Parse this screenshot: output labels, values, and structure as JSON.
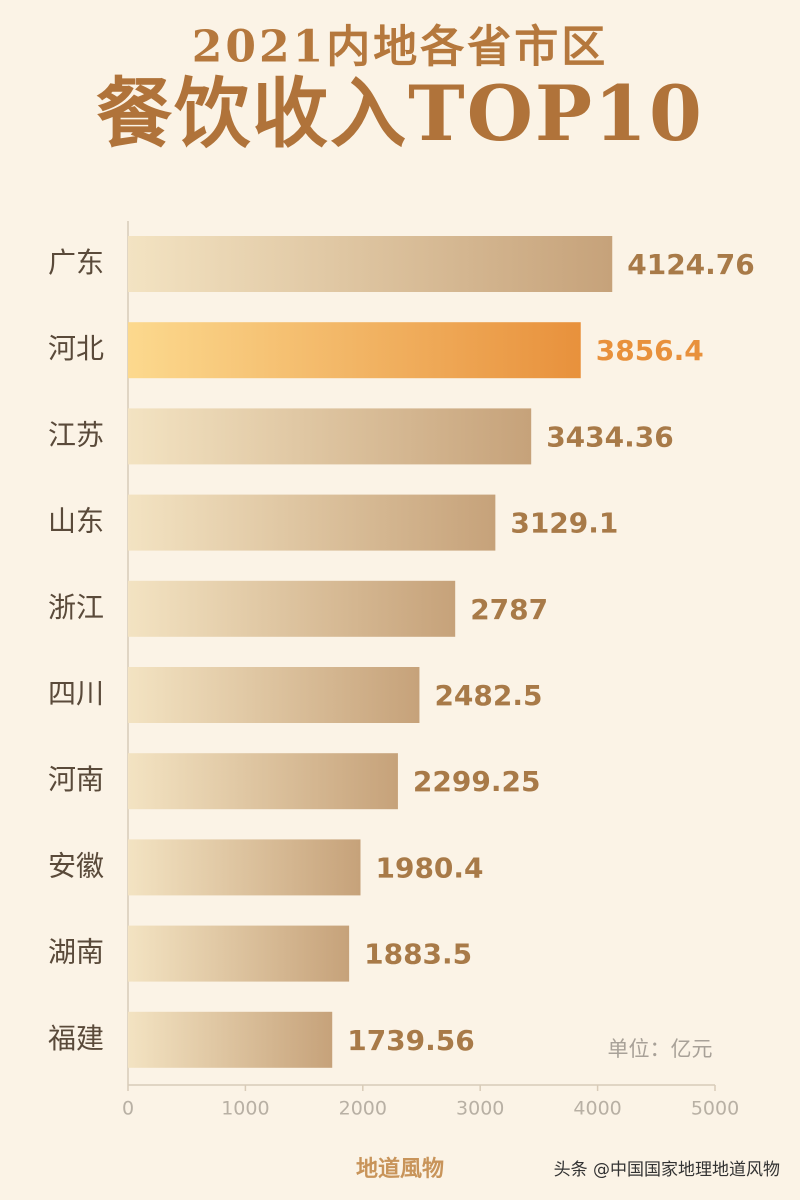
{
  "chart_data": {
    "type": "hbar",
    "title": "2021内地各省市区",
    "subtitle": "餐饮收入TOP10",
    "categories": [
      "广东",
      "河北",
      "江苏",
      "山东",
      "浙江",
      "四川",
      "河南",
      "安徽",
      "湖南",
      "福建"
    ],
    "values": [
      4124.76,
      3856.4,
      3434.36,
      3129.1,
      2787,
      2482.5,
      2299.25,
      1980.4,
      1883.5,
      1739.56
    ],
    "colors": [
      [
        "#f3e3c2",
        "#c6a27a"
      ],
      [
        "#fcd98e",
        "#e8913c"
      ],
      [
        "#f3e3c2",
        "#c6a27a"
      ],
      [
        "#f3e3c2",
        "#c6a27a"
      ],
      [
        "#f3e3c2",
        "#c6a27a"
      ],
      [
        "#f3e3c2",
        "#c6a27a"
      ],
      [
        "#f3e3c2",
        "#c6a27a"
      ],
      [
        "#f3e3c2",
        "#c6a27a"
      ],
      [
        "#f3e3c2",
        "#c6a27a"
      ],
      [
        "#f3e3c2",
        "#c6a27a"
      ]
    ],
    "label_colors": [
      "#a87a48",
      "#e8913c",
      "#a87a48",
      "#a87a48",
      "#a87a48",
      "#a87a48",
      "#a87a48",
      "#a87a48",
      "#a87a48",
      "#a87a48"
    ],
    "xlim": [
      0,
      5000
    ],
    "xticks": [
      0,
      1000,
      2000,
      3000,
      4000,
      5000
    ],
    "unit_note": "单位：亿元",
    "footer": "地道風物",
    "watermark": "头条 @中国国家地理地道风物"
  }
}
